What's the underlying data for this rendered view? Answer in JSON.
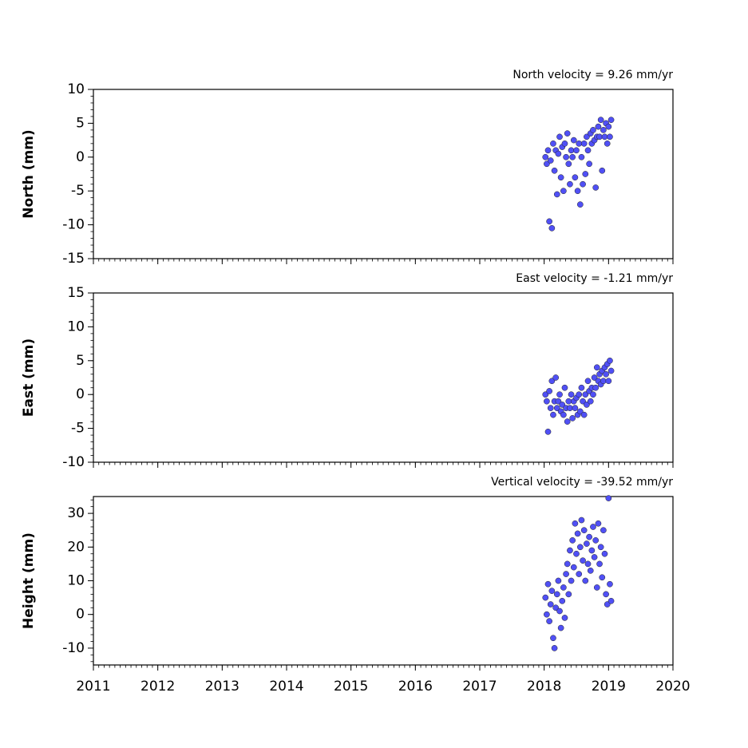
{
  "chart_data": [
    {
      "type": "scatter",
      "title": "North velocity = 9.26 mm/yr",
      "ylabel": "North (mm)",
      "color": "#5050f5",
      "xlim": [
        2011,
        2020
      ],
      "xticks": [
        2011,
        2012,
        2013,
        2014,
        2015,
        2016,
        2017,
        2018,
        2019,
        2020
      ],
      "ylim": [
        -15,
        10
      ],
      "yticks": [
        -15,
        -10,
        -5,
        0,
        5,
        10
      ],
      "x": [
        2018.02,
        2018.04,
        2018.06,
        2018.08,
        2018.1,
        2018.12,
        2018.14,
        2018.16,
        2018.18,
        2018.2,
        2018.22,
        2018.24,
        2018.26,
        2018.28,
        2018.3,
        2018.32,
        2018.34,
        2018.36,
        2018.38,
        2018.4,
        2018.42,
        2018.44,
        2018.46,
        2018.48,
        2018.5,
        2018.52,
        2018.54,
        2018.56,
        2018.58,
        2018.6,
        2018.62,
        2018.64,
        2018.66,
        2018.68,
        2018.7,
        2018.72,
        2018.74,
        2018.76,
        2018.78,
        2018.8,
        2018.82,
        2018.84,
        2018.86,
        2018.88,
        2018.9,
        2018.92,
        2018.94,
        2018.96,
        2018.98,
        2019.0,
        2019.02,
        2019.04
      ],
      "values": [
        0,
        -1,
        1,
        -9.5,
        -0.5,
        -10.5,
        2,
        -2,
        1,
        -5.5,
        0.5,
        3,
        -3,
        1.5,
        -5,
        2,
        0,
        3.5,
        -1,
        -4,
        1,
        0,
        2.5,
        -3,
        1,
        -5,
        2,
        -7,
        0,
        -4,
        2,
        -2.5,
        3,
        1,
        -1,
        3.5,
        2,
        4,
        2.5,
        -4.5,
        3,
        4.5,
        3,
        5.5,
        -2,
        4,
        3,
        5,
        2,
        4.5,
        3,
        5.5
      ]
    },
    {
      "type": "scatter",
      "title": "East velocity = -1.21 mm/yr",
      "ylabel": "East (mm)",
      "color": "#5050f5",
      "xlim": [
        2011,
        2020
      ],
      "xticks": [
        2011,
        2012,
        2013,
        2014,
        2015,
        2016,
        2017,
        2018,
        2019,
        2020
      ],
      "ylim": [
        -10,
        15
      ],
      "yticks": [
        -10,
        -5,
        0,
        5,
        10,
        15
      ],
      "x": [
        2018.02,
        2018.04,
        2018.06,
        2018.08,
        2018.1,
        2018.12,
        2018.14,
        2018.16,
        2018.18,
        2018.2,
        2018.22,
        2018.24,
        2018.26,
        2018.28,
        2018.3,
        2018.32,
        2018.34,
        2018.36,
        2018.38,
        2018.4,
        2018.42,
        2018.44,
        2018.46,
        2018.48,
        2018.5,
        2018.52,
        2018.54,
        2018.56,
        2018.58,
        2018.6,
        2018.62,
        2018.64,
        2018.66,
        2018.68,
        2018.7,
        2018.72,
        2018.74,
        2018.76,
        2018.78,
        2018.8,
        2018.82,
        2018.84,
        2018.86,
        2018.88,
        2018.9,
        2018.92,
        2018.94,
        2018.96,
        2018.98,
        2019.0,
        2019.02,
        2019.04
      ],
      "values": [
        0,
        -1,
        -5.5,
        0.5,
        -2,
        2,
        -3,
        -1,
        2.5,
        -2,
        -1,
        0,
        -2.5,
        -1.5,
        -3,
        1,
        -2,
        -4,
        -1,
        -2,
        0,
        -3.5,
        -1,
        -2,
        -0.5,
        -3,
        0,
        -2.5,
        1,
        -1,
        -3,
        0,
        -1.5,
        2,
        0.5,
        -1,
        1,
        0,
        2.5,
        1,
        4,
        2,
        3,
        1.5,
        3.5,
        2,
        4,
        3,
        4.5,
        2,
        5,
        3.5
      ]
    },
    {
      "type": "scatter",
      "title": "Vertical velocity = -39.52 mm/yr",
      "ylabel": "Height (mm)",
      "color": "#5050f5",
      "xlim": [
        2011,
        2020
      ],
      "xticks": [
        2011,
        2012,
        2013,
        2014,
        2015,
        2016,
        2017,
        2018,
        2019,
        2020
      ],
      "ylim": [
        -15,
        35
      ],
      "yticks": [
        -10,
        0,
        10,
        20,
        30
      ],
      "x": [
        2018.02,
        2018.04,
        2018.06,
        2018.08,
        2018.1,
        2018.12,
        2018.14,
        2018.16,
        2018.18,
        2018.2,
        2018.22,
        2018.24,
        2018.26,
        2018.28,
        2018.3,
        2018.32,
        2018.34,
        2018.36,
        2018.38,
        2018.4,
        2018.42,
        2018.44,
        2018.46,
        2018.48,
        2018.5,
        2018.52,
        2018.54,
        2018.56,
        2018.58,
        2018.6,
        2018.62,
        2018.64,
        2018.66,
        2018.68,
        2018.7,
        2018.72,
        2018.74,
        2018.76,
        2018.78,
        2018.8,
        2018.82,
        2018.84,
        2018.86,
        2018.88,
        2018.9,
        2018.92,
        2018.94,
        2018.96,
        2018.98,
        2019.0,
        2019.02,
        2019.04
      ],
      "values": [
        5,
        0,
        9,
        -2,
        3,
        7,
        -7,
        -10,
        2,
        6,
        10,
        1,
        -4,
        4,
        8,
        -1,
        12,
        15,
        6,
        19,
        10,
        22,
        14,
        27,
        18,
        24,
        12,
        20,
        28,
        16,
        25,
        10,
        21,
        15,
        23,
        13,
        19,
        26,
        17,
        22,
        8,
        27,
        15,
        20,
        11,
        25,
        18,
        6,
        3,
        34.5,
        9,
        4
      ]
    }
  ]
}
